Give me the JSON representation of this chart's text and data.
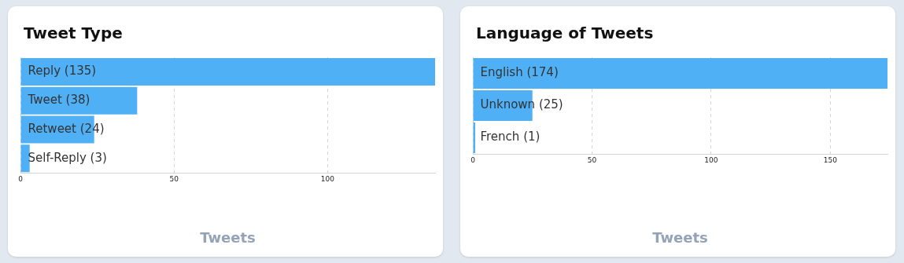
{
  "chart_data": [
    {
      "type": "bar",
      "orientation": "horizontal",
      "title": "Tweet Type",
      "xlabel": "Tweets",
      "categories": [
        "Reply (135)",
        "Tweet (38)",
        "Retweet (24)",
        "Self-Reply (3)"
      ],
      "values": [
        135,
        38,
        24,
        3
      ],
      "color": "#4fb0f6",
      "xlim": [
        0,
        135
      ],
      "xticks": [
        0,
        50,
        100
      ],
      "grid": "x"
    },
    {
      "type": "bar",
      "orientation": "horizontal",
      "title": "Language of Tweets",
      "xlabel": "Tweets",
      "categories": [
        "English (174)",
        "Unknown (25)",
        "French (1)"
      ],
      "values": [
        174,
        25,
        1
      ],
      "color": "#4fb0f6",
      "xlim": [
        0,
        174
      ],
      "xticks": [
        0,
        50,
        100,
        150
      ],
      "grid": "x"
    }
  ]
}
